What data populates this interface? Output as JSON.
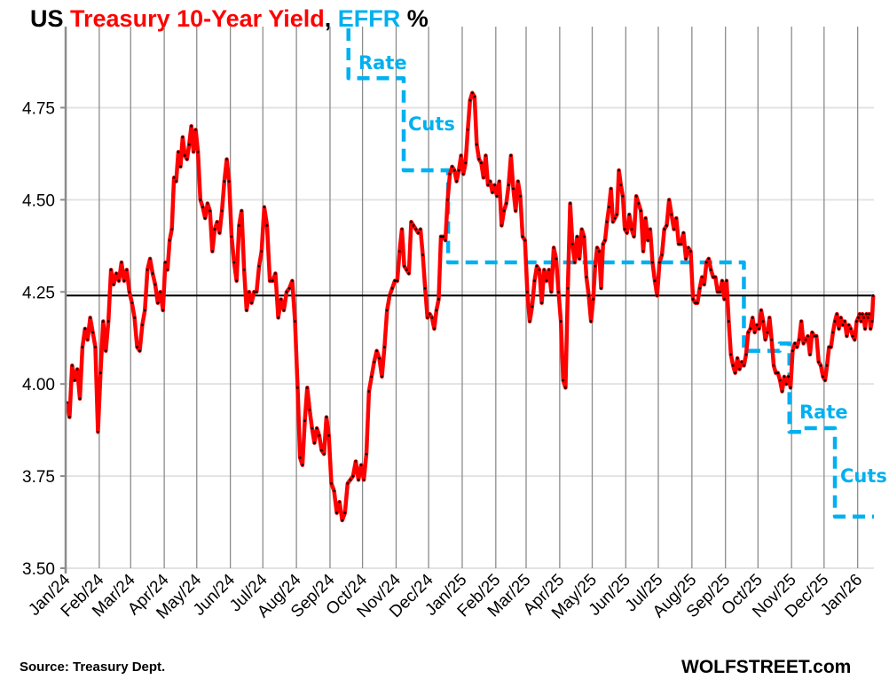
{
  "title": {
    "part1": "US ",
    "part2": "Treasury 10-Year Yield",
    "part3": ", ",
    "part4": "EFFR",
    "part5": " %"
  },
  "footer": {
    "source": "Source: Treasury Dept.",
    "brand": "WOLFSTREET.com"
  },
  "chart_data": {
    "type": "line",
    "title": "US Treasury 10-Year Yield, EFFR %",
    "ylim": [
      3.5,
      4.97
    ],
    "xlim": [
      "2024-01-01",
      "2026-01-16"
    ],
    "y_ticks": [
      "3.50",
      "3.75",
      "4.00",
      "4.25",
      "4.50",
      "4.75"
    ],
    "x_ticks": [
      "Jan/24",
      "Feb/24",
      "Mar/24",
      "Apr/24",
      "May/24",
      "Jun/24",
      "Jul/24",
      "Aug/24",
      "Sep/24",
      "Oct/24",
      "Nov/24",
      "Dec/24",
      "Jan/25",
      "Feb/25",
      "Mar/25",
      "Apr/25",
      "May/25",
      "Jun/25",
      "Jul/25",
      "Aug/25",
      "Sep/25",
      "Oct/25",
      "Nov/25",
      "Dec/25",
      "Jan/26"
    ],
    "grid": {
      "vertical_monthly": true,
      "horizontal": true
    },
    "colors": {
      "yield": "#ff0000",
      "effr": "#00b0f0",
      "reference_line": "#000000",
      "grid_vertical": "#8c8c8c",
      "grid_horizontal": "#e3e3e3"
    },
    "series": [
      {
        "key": "yield",
        "style": "solid-with-markers",
        "monthly_values": [
          {
            "month": "2024-01",
            "values": [
              3.95,
              3.91,
              4.05,
              4.01,
              4.04,
              3.96,
              4.1,
              4.15,
              4.12,
              4.18,
              4.14,
              4.1,
              3.87
            ]
          },
          {
            "month": "2024-02",
            "values": [
              4.03,
              4.17,
              4.09,
              4.17,
              4.31,
              4.27,
              4.3,
              4.28,
              4.33,
              4.28,
              4.31,
              4.25
            ]
          },
          {
            "month": "2024-03",
            "values": [
              4.22,
              4.18,
              4.1,
              4.09,
              4.16,
              4.2,
              4.31,
              4.34,
              4.3,
              4.27,
              4.22,
              4.25,
              4.2
            ]
          },
          {
            "month": "2024-04",
            "values": [
              4.33,
              4.31,
              4.39,
              4.42,
              4.56,
              4.55,
              4.63,
              4.59,
              4.67,
              4.62,
              4.61,
              4.65,
              4.7,
              4.63,
              4.69
            ]
          },
          {
            "month": "2024-05",
            "values": [
              4.63,
              4.5,
              4.48,
              4.45,
              4.49,
              4.47,
              4.36,
              4.42,
              4.44,
              4.41,
              4.47,
              4.55,
              4.61,
              4.55
            ]
          },
          {
            "month": "2024-06",
            "values": [
              4.4,
              4.33,
              4.28,
              4.43,
              4.47,
              4.31,
              4.2,
              4.25,
              4.22,
              4.25,
              4.25,
              4.32,
              4.36
            ]
          },
          {
            "month": "2024-07",
            "values": [
              4.48,
              4.43,
              4.28,
              4.28,
              4.3,
              4.18,
              4.23,
              4.2,
              4.25,
              4.26,
              4.28,
              4.17
            ]
          },
          {
            "month": "2024-08",
            "values": [
              3.99,
              3.8,
              3.78,
              3.9,
              3.99,
              3.93,
              3.88,
              3.84,
              3.88,
              3.86,
              3.82,
              3.81,
              3.91,
              3.86
            ]
          },
          {
            "month": "2024-09",
            "values": [
              3.73,
              3.71,
              3.65,
              3.68,
              3.63,
              3.65,
              3.73,
              3.74,
              3.75,
              3.79,
              3.74,
              3.78
            ]
          },
          {
            "month": "2024-10",
            "values": [
              3.74,
              3.81,
              3.98,
              4.02,
              4.06,
              4.09,
              4.07,
              4.02,
              4.1,
              4.2,
              4.24,
              4.26,
              4.28
            ]
          },
          {
            "month": "2024-11",
            "values": [
              4.28,
              4.36,
              4.42,
              4.32,
              4.31,
              4.3,
              4.44,
              4.43,
              4.42,
              4.41,
              4.42,
              4.35,
              4.26,
              4.18
            ]
          },
          {
            "month": "2024-12",
            "values": [
              4.19,
              4.18,
              4.15,
              4.2,
              4.23,
              4.4,
              4.4,
              4.39,
              4.5,
              4.57,
              4.59,
              4.58,
              4.55,
              4.58,
              4.62
            ]
          },
          {
            "month": "2025-01",
            "values": [
              4.57,
              4.6,
              4.69,
              4.77,
              4.79,
              4.78,
              4.65,
              4.61,
              4.6,
              4.56,
              4.62,
              4.54,
              4.55,
              4.52,
              4.54
            ]
          },
          {
            "month": "2025-02",
            "values": [
              4.51,
              4.55,
              4.43,
              4.47,
              4.49,
              4.54,
              4.62,
              4.53,
              4.47,
              4.55,
              4.51,
              4.4,
              4.39
            ]
          },
          {
            "month": "2025-03",
            "values": [
              4.25,
              4.17,
              4.21,
              4.28,
              4.32,
              4.31,
              4.22,
              4.31,
              4.28,
              4.31,
              4.25,
              4.37,
              4.34,
              4.25
            ]
          },
          {
            "month": "2025-04",
            "values": [
              4.17,
              4.01,
              3.99,
              4.26,
              4.49,
              4.38,
              4.33,
              4.4,
              4.34,
              4.42,
              4.4,
              4.29,
              4.24,
              4.17
            ]
          },
          {
            "month": "2025-05",
            "values": [
              4.23,
              4.32,
              4.37,
              4.36,
              4.26,
              4.38,
              4.39,
              4.44,
              4.48,
              4.53,
              4.44,
              4.45,
              4.46,
              4.58,
              4.54,
              4.51,
              4.42
            ]
          },
          {
            "month": "2025-06",
            "values": [
              4.41,
              4.46,
              4.42,
              4.4,
              4.51,
              4.49,
              4.47,
              4.36,
              4.45,
              4.39,
              4.42,
              4.33,
              4.28,
              4.24
            ]
          },
          {
            "month": "2025-07",
            "values": [
              4.33,
              4.35,
              4.42,
              4.43,
              4.5,
              4.46,
              4.42,
              4.45,
              4.38,
              4.38,
              4.41,
              4.34,
              4.37,
              4.36
            ]
          },
          {
            "month": "2025-08",
            "values": [
              4.23,
              4.22,
              4.22,
              4.26,
              4.29,
              4.27,
              4.33,
              4.34,
              4.31,
              4.29,
              4.29,
              4.25,
              4.25,
              4.28,
              4.23
            ]
          },
          {
            "month": "2025-09",
            "values": [
              4.28,
              4.17,
              4.08,
              4.05,
              4.03,
              4.07,
              4.04,
              4.06,
              4.05,
              4.08,
              4.14,
              4.15,
              4.18,
              4.14,
              4.16
            ]
          },
          {
            "month": "2025-10",
            "values": [
              4.15,
              4.2,
              4.17,
              4.12,
              4.14,
              4.18,
              4.12,
              4.05,
              4.03,
              4.03,
              4.01,
              3.98,
              4.02,
              4.0,
              4.02,
              3.99
            ]
          },
          {
            "month": "2025-11",
            "values": [
              4.09,
              4.11,
              4.1,
              4.12,
              4.17,
              4.11,
              4.12,
              4.13,
              4.08,
              4.14,
              4.13,
              4.13,
              4.06,
              4.05,
              4.02
            ]
          },
          {
            "month": "2025-12",
            "values": [
              4.01,
              4.05,
              4.1,
              4.1,
              4.14,
              4.17,
              4.19,
              4.15,
              4.18,
              4.16,
              4.17,
              4.13,
              4.16,
              4.15,
              4.13,
              4.12,
              4.17
            ]
          },
          {
            "month": "2026-01",
            "values": [
              4.18,
              4.19,
              4.17,
              4.19,
              4.18,
              4.15,
              4.19,
              4.18,
              4.19,
              4.15,
              4.17,
              4.24
            ]
          }
        ]
      },
      {
        "key": "effr",
        "style": "dashed-step",
        "steps": [
          {
            "from": "2024-09-18",
            "value": 4.83
          },
          {
            "from": "2024-11-08",
            "value": 4.58
          },
          {
            "from": "2024-12-19",
            "value": 4.33
          },
          {
            "from": "2025-09-18",
            "value": 4.09
          },
          {
            "from": "2025-10-21",
            "value": 4.11
          },
          {
            "from": "2025-10-30",
            "value": 3.87
          },
          {
            "from": "2025-11-10",
            "value": 3.88
          },
          {
            "from": "2025-12-11",
            "value": 3.64
          }
        ],
        "prior_value_offscale": 5.33
      }
    ],
    "reference_line": {
      "value": 4.24
    },
    "annotations": [
      {
        "text": "Rate",
        "near": "2024-09 step"
      },
      {
        "text": "Cuts",
        "near": "2024-11 step"
      },
      {
        "text": "Rate",
        "near": "2025-10 step"
      },
      {
        "text": "Cuts",
        "near": "2025-12 step"
      }
    ]
  }
}
